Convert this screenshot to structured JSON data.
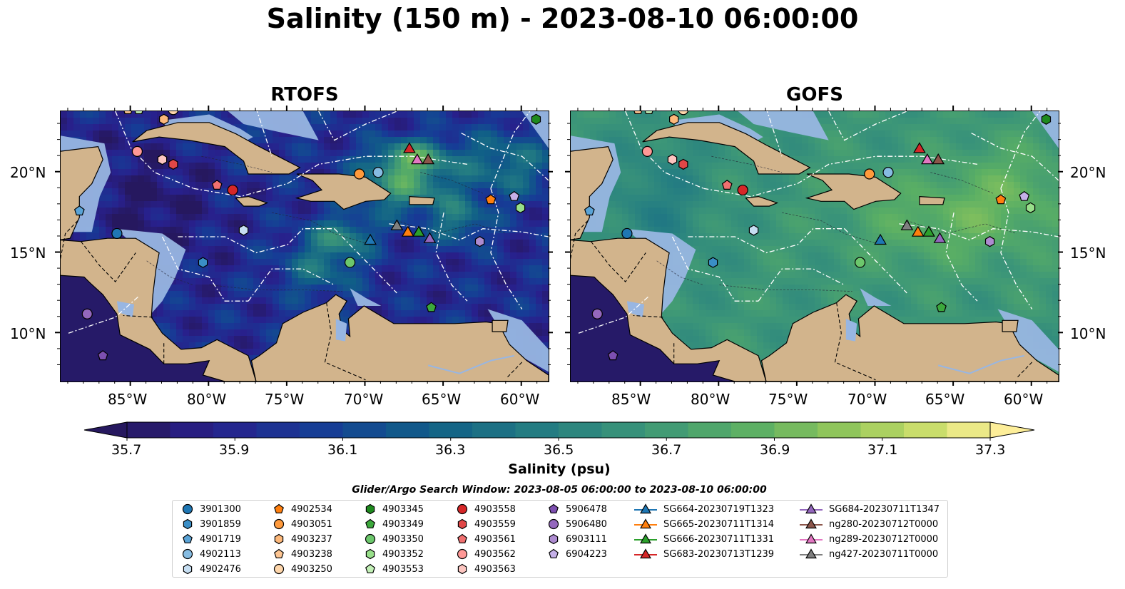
{
  "title": "Salinity (150 m) - 2023-08-10 06:00:00",
  "panels": [
    {
      "title": "RTOFS",
      "field": "rtofs"
    },
    {
      "title": "GOFS",
      "field": "gofs"
    }
  ],
  "longitude_ticks": [
    "85°W",
    "80°W",
    "75°W",
    "70°W",
    "65°W",
    "60°W"
  ],
  "latitude_ticks": [
    "20°N",
    "15°N",
    "10°N"
  ],
  "colorbar": {
    "label": "Salinity (psu)",
    "min": 35.7,
    "max": 37.3,
    "ticks": [
      "35.7",
      "35.9",
      "36.1",
      "36.3",
      "36.5",
      "36.7",
      "36.9",
      "37.1",
      "37.3"
    ],
    "extend": "both",
    "colormap": "haline"
  },
  "search_window": "Glider/Argo Search Window: 2023-08-05 06:00:00 to 2023-08-10 06:00:00",
  "colors": {
    "land": "#d2b48c",
    "shelf": "#98b6e2",
    "coast": "#000000",
    "argo_blue_dark": "#1f77b4",
    "argo_blue_mid": "#3a8ec6",
    "argo_blue_light": "#86bce2",
    "argo_blue_pale": "#c6def2",
    "argo_orange": "#ff7f0e",
    "argo_orange_light": "#fdb87a",
    "argo_orange_pale": "#fed6ab",
    "argo_green_dark": "#2ca02c",
    "argo_green_light": "#98df8a",
    "argo_red": "#d62728",
    "argo_red_light": "#ff9896",
    "argo_red_pale": "#fcc5c0",
    "argo_purple": "#9467bd",
    "argo_purple_light": "#c5b0d5"
  },
  "legend": {
    "columns": [
      [
        {
          "label": "3901300",
          "marker": "circle",
          "color": "#1f77b4"
        },
        {
          "label": "3901859",
          "marker": "hexagon",
          "color": "#3a8ec6"
        },
        {
          "label": "4901719",
          "marker": "pentagon",
          "color": "#5aa3d6"
        },
        {
          "label": "4902113",
          "marker": "circle",
          "color": "#86bce2"
        },
        {
          "label": "4902476",
          "marker": "hexagon",
          "color": "#c6def2"
        }
      ],
      [
        {
          "label": "4902534",
          "marker": "pentagon",
          "color": "#ff7f0e"
        },
        {
          "label": "4903051",
          "marker": "circle",
          "color": "#ff9a3c"
        },
        {
          "label": "4903237",
          "marker": "hexagon",
          "color": "#fdb87a"
        },
        {
          "label": "4903238",
          "marker": "pentagon",
          "color": "#fdc592"
        },
        {
          "label": "4903250",
          "marker": "circle",
          "color": "#fed6ab"
        }
      ],
      [
        {
          "label": "4903345",
          "marker": "hexagon",
          "color": "#1e8a1e"
        },
        {
          "label": "4903349",
          "marker": "pentagon",
          "color": "#3ca83c"
        },
        {
          "label": "4903350",
          "marker": "circle",
          "color": "#6cc76c"
        },
        {
          "label": "4903352",
          "marker": "hexagon",
          "color": "#98df8a"
        },
        {
          "label": "4903553",
          "marker": "pentagon",
          "color": "#c2f0b6"
        }
      ],
      [
        {
          "label": "4903558",
          "marker": "circle",
          "color": "#d62728"
        },
        {
          "label": "4903559",
          "marker": "hexagon",
          "color": "#e04747"
        },
        {
          "label": "4903561",
          "marker": "pentagon",
          "color": "#f07070"
        },
        {
          "label": "4903562",
          "marker": "circle",
          "color": "#ff9896"
        },
        {
          "label": "4903563",
          "marker": "hexagon",
          "color": "#fcc5c0"
        }
      ],
      [
        {
          "label": "5906478",
          "marker": "pentagon",
          "color": "#7d4fb0"
        },
        {
          "label": "5906480",
          "marker": "circle",
          "color": "#9467bd"
        },
        {
          "label": "6903111",
          "marker": "hexagon",
          "color": "#ad8bd0"
        },
        {
          "label": "6904223",
          "marker": "pentagon",
          "color": "#c5b0e8"
        }
      ],
      [
        {
          "label": "SG664-20230719T1323",
          "marker": "triangle-line",
          "color": "#1f77b4"
        },
        {
          "label": "SG665-20230711T1314",
          "marker": "triangle-line",
          "color": "#ff7f0e"
        },
        {
          "label": "SG666-20230711T1331",
          "marker": "triangle-line",
          "color": "#2ca02c"
        },
        {
          "label": "SG683-20230713T1239",
          "marker": "triangle-line",
          "color": "#d62728"
        }
      ],
      [
        {
          "label": "SG684-20230711T1347",
          "marker": "triangle-line",
          "color": "#9467bd"
        },
        {
          "label": "ng280-20230712T0000",
          "marker": "triangle-line",
          "color": "#8c564b"
        },
        {
          "label": "ng289-20230712T0000",
          "marker": "triangle-line",
          "color": "#e377c2"
        },
        {
          "label": "ng427-20230711T0000",
          "marker": "triangle-line",
          "color": "#7f7f7f"
        }
      ]
    ]
  },
  "floats": [
    {
      "label": "3901300",
      "marker": "circle",
      "color": "#1f77b4",
      "lon": -85.9,
      "lat": 16.2
    },
    {
      "label": "4902113",
      "marker": "circle",
      "color": "#86bce2",
      "lon": -69.2,
      "lat": 20.0
    },
    {
      "label": "4901719",
      "marker": "pentagon",
      "color": "#5aa3d6",
      "lon": -88.3,
      "lat": 17.6
    },
    {
      "label": "4902476",
      "marker": "hexagon",
      "color": "#c6def2",
      "lon": -77.8,
      "lat": 16.4
    },
    {
      "label": "3901859",
      "marker": "hexagon",
      "color": "#3a8ec6",
      "lon": -80.4,
      "lat": 14.4
    },
    {
      "label": "4903051",
      "marker": "circle",
      "color": "#ff9a3c",
      "lon": -70.4,
      "lat": 19.9
    },
    {
      "label": "4902534",
      "marker": "pentagon",
      "color": "#ff7f0e",
      "lon": -62.0,
      "lat": 18.3
    },
    {
      "label": "4903237",
      "marker": "hexagon",
      "color": "#fdb87a",
      "lon": -82.9,
      "lat": 23.3
    },
    {
      "label": "4903238",
      "marker": "pentagon",
      "color": "#fdc592",
      "lon": -85.2,
      "lat": 23.9
    },
    {
      "label": "4903250",
      "marker": "circle",
      "color": "#fed6ab",
      "lon": -82.3,
      "lat": 23.9
    },
    {
      "label": "4903345",
      "marker": "hexagon",
      "color": "#1e8a1e",
      "lon": -59.1,
      "lat": 23.3
    },
    {
      "label": "4903349",
      "marker": "pentagon",
      "color": "#3ca83c",
      "lon": -65.8,
      "lat": 11.6
    },
    {
      "label": "4903350",
      "marker": "circle",
      "color": "#6cc76c",
      "lon": -71.0,
      "lat": 14.4
    },
    {
      "label": "4903352",
      "marker": "hexagon",
      "color": "#98df8a",
      "lon": -60.1,
      "lat": 17.8
    },
    {
      "label": "4903553",
      "marker": "pentagon",
      "color": "#c2f0b6",
      "lon": -84.5,
      "lat": 23.9
    },
    {
      "label": "4903558",
      "marker": "circle",
      "color": "#d62728",
      "lon": -78.5,
      "lat": 18.9
    },
    {
      "label": "4903559",
      "marker": "hexagon",
      "color": "#e04747",
      "lon": -82.3,
      "lat": 20.5
    },
    {
      "label": "4903561",
      "marker": "pentagon",
      "color": "#f07070",
      "lon": -79.5,
      "lat": 19.2
    },
    {
      "label": "4903562",
      "marker": "circle",
      "color": "#ff9896",
      "lon": -84.6,
      "lat": 21.3
    },
    {
      "label": "4903563",
      "marker": "hexagon",
      "color": "#fcc5c0",
      "lon": -83.0,
      "lat": 20.8
    },
    {
      "label": "5906478",
      "marker": "pentagon",
      "color": "#7d4fb0",
      "lon": -86.8,
      "lat": 8.6
    },
    {
      "label": "5906480",
      "marker": "circle",
      "color": "#9467bd",
      "lon": -87.8,
      "lat": 11.2
    },
    {
      "label": "6903111",
      "marker": "hexagon",
      "color": "#ad8bd0",
      "lon": -62.7,
      "lat": 15.7
    },
    {
      "label": "6904223",
      "marker": "pentagon",
      "color": "#c5b0e8",
      "lon": -60.5,
      "lat": 18.5
    }
  ],
  "gliders": [
    {
      "label": "SG664-20230719T1323",
      "color": "#1f77b4",
      "lon": -69.7,
      "lat": 15.8
    },
    {
      "label": "SG665-20230711T1314",
      "color": "#ff7f0e",
      "lon": -67.3,
      "lat": 16.3
    },
    {
      "label": "SG666-20230711T1331",
      "color": "#2ca02c",
      "lon": -66.6,
      "lat": 16.3
    },
    {
      "label": "SG683-20230713T1239",
      "color": "#d62728",
      "lon": -67.2,
      "lat": 21.5
    },
    {
      "label": "SG684-20230711T1347",
      "color": "#9467bd",
      "lon": -65.9,
      "lat": 15.9
    },
    {
      "label": "ng280-20230712T0000",
      "color": "#8c564b",
      "lon": -66.0,
      "lat": 20.8
    },
    {
      "label": "ng289-20230712T0000",
      "color": "#e377c2",
      "lon": -66.7,
      "lat": 20.8
    },
    {
      "label": "ng427-20230711T0000",
      "color": "#7f7f7f",
      "lon": -68.0,
      "lat": 16.7
    }
  ]
}
